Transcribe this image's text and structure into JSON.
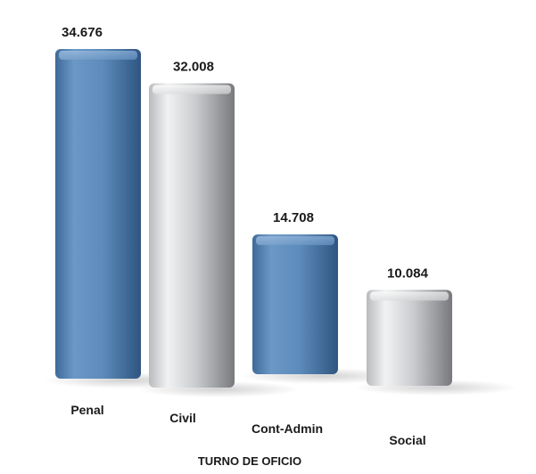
{
  "chart_data": {
    "type": "bar",
    "categories": [
      "Penal",
      "Civil",
      "Cont-Admin",
      "Social"
    ],
    "values": [
      34676,
      32008,
      14708,
      10084
    ],
    "value_labels": [
      "34.676",
      "32.008",
      "14.708",
      "10.084"
    ],
    "xlabel": "TURNO DE OFICIO",
    "ylabel": "",
    "ylim": [
      0,
      34676
    ],
    "grid": false,
    "legend": "none",
    "colors": [
      "#5b89b8",
      "#c7c9cc",
      "#5b89b8",
      "#c7c9cc"
    ]
  }
}
